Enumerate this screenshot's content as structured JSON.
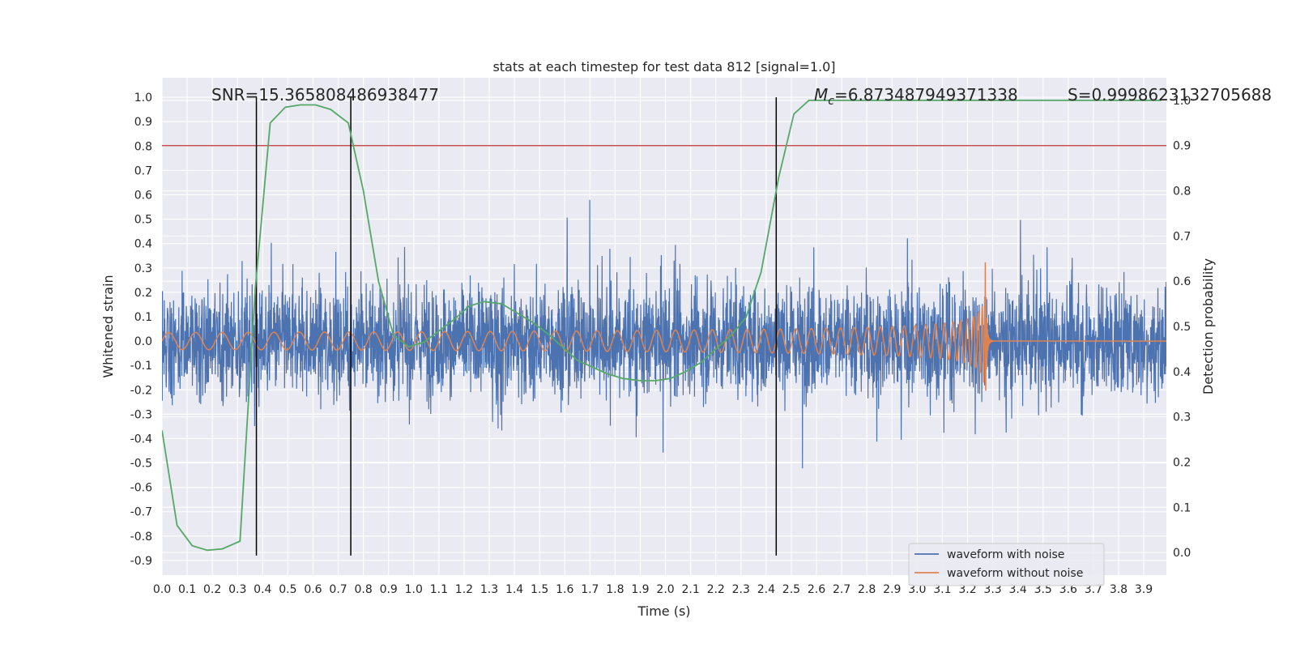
{
  "chart_data": {
    "type": "line",
    "title": "stats at each timestep for test data 812 [signal=1.0]",
    "xlabel": "Time (s)",
    "ylabel": "Whitened strain",
    "y2label": "Detection probability",
    "xlim": [
      0.0,
      3.99
    ],
    "ylim": [
      -0.96,
      1.08
    ],
    "y2lim": [
      -0.05,
      1.05
    ],
    "x_ticks": [
      "0.0",
      "0.1",
      "0.2",
      "0.3",
      "0.4",
      "0.5",
      "0.6",
      "0.7",
      "0.8",
      "0.9",
      "1.0",
      "1.1",
      "1.2",
      "1.3",
      "1.4",
      "1.5",
      "1.6",
      "1.7",
      "1.8",
      "1.9",
      "2.0",
      "2.1",
      "2.2",
      "2.3",
      "2.4",
      "2.5",
      "2.6",
      "2.7",
      "2.8",
      "2.9",
      "3.0",
      "3.1",
      "3.2",
      "3.3",
      "3.4",
      "3.5",
      "3.6",
      "3.7",
      "3.8",
      "3.9"
    ],
    "y_ticks": [
      "1.0",
      "0.9",
      "0.8",
      "0.7",
      "0.6",
      "0.5",
      "0.4",
      "0.3",
      "0.2",
      "0.1",
      "0.0",
      "-0.1",
      "-0.2",
      "-0.3",
      "-0.4",
      "-0.5",
      "-0.6",
      "-0.7",
      "-0.8",
      "-0.9"
    ],
    "y2_ticks": [
      "1.0",
      "0.9",
      "0.8",
      "0.7",
      "0.6",
      "0.5",
      "0.4",
      "0.3",
      "0.2",
      "0.1",
      "0.0"
    ],
    "grid": true,
    "legend_position": "lower-right",
    "annotations": {
      "snr": "SNR=15.365808486938477",
      "mc_symbol": "M",
      "mc_sub": "c",
      "mc_value": "=6.873487949371338",
      "s": "S=0.9998623132705688"
    },
    "series": [
      {
        "name": "waveform with noise",
        "color": "#4c72b0",
        "kind": "noise",
        "x_range": [
          0.0,
          3.99
        ],
        "std": 0.25
      },
      {
        "name": "waveform without noise",
        "color": "#dd8452",
        "kind": "chirp",
        "x_range": [
          0.0,
          3.27
        ],
        "amplitude_start": 0.035,
        "amplitude_peak": 0.38,
        "merger_time": 3.27
      }
    ],
    "detection_probability": {
      "color": "#55a868",
      "x": [
        0.0,
        0.06,
        0.12,
        0.18,
        0.24,
        0.31,
        0.37,
        0.43,
        0.49,
        0.55,
        0.61,
        0.67,
        0.74,
        0.8,
        0.86,
        0.92,
        0.98,
        1.04,
        1.1,
        1.16,
        1.22,
        1.28,
        1.35,
        1.41,
        1.47,
        1.53,
        1.59,
        1.65,
        1.71,
        1.77,
        1.83,
        1.9,
        1.96,
        2.02,
        2.08,
        2.14,
        2.2,
        2.26,
        2.32,
        2.38,
        2.45,
        2.51,
        2.57,
        2.63,
        2.69,
        2.75,
        2.81,
        2.87,
        2.93,
        3.0,
        3.06,
        3.12,
        3.18,
        3.24,
        3.3,
        3.36,
        3.42,
        3.48,
        3.55,
        3.61,
        3.67,
        3.73,
        3.79,
        3.85,
        3.91,
        3.97
      ],
      "y": [
        0.27,
        0.06,
        0.015,
        0.005,
        0.008,
        0.025,
        0.58,
        0.95,
        0.985,
        0.99,
        0.99,
        0.98,
        0.95,
        0.8,
        0.6,
        0.48,
        0.455,
        0.465,
        0.49,
        0.515,
        0.545,
        0.555,
        0.55,
        0.53,
        0.51,
        0.485,
        0.455,
        0.425,
        0.41,
        0.395,
        0.385,
        0.38,
        0.38,
        0.385,
        0.4,
        0.42,
        0.45,
        0.48,
        0.52,
        0.62,
        0.83,
        0.97,
        1.0,
        1.0,
        1.0,
        1.0,
        1.0,
        1.0,
        1.0,
        1.0,
        1.0,
        1.0,
        1.0,
        1.0,
        1.0,
        1.0,
        1.0,
        1.0,
        1.0,
        1.0,
        1.0,
        1.0,
        1.0,
        1.0,
        1.0,
        1.0
      ]
    },
    "threshold": {
      "value": 0.9,
      "axis": "y2",
      "color": "#c44e52"
    },
    "vertical_lines": [
      0.375,
      0.75,
      2.44
    ],
    "vertical_lines_ylim": [
      -0.88,
      1.0
    ]
  }
}
